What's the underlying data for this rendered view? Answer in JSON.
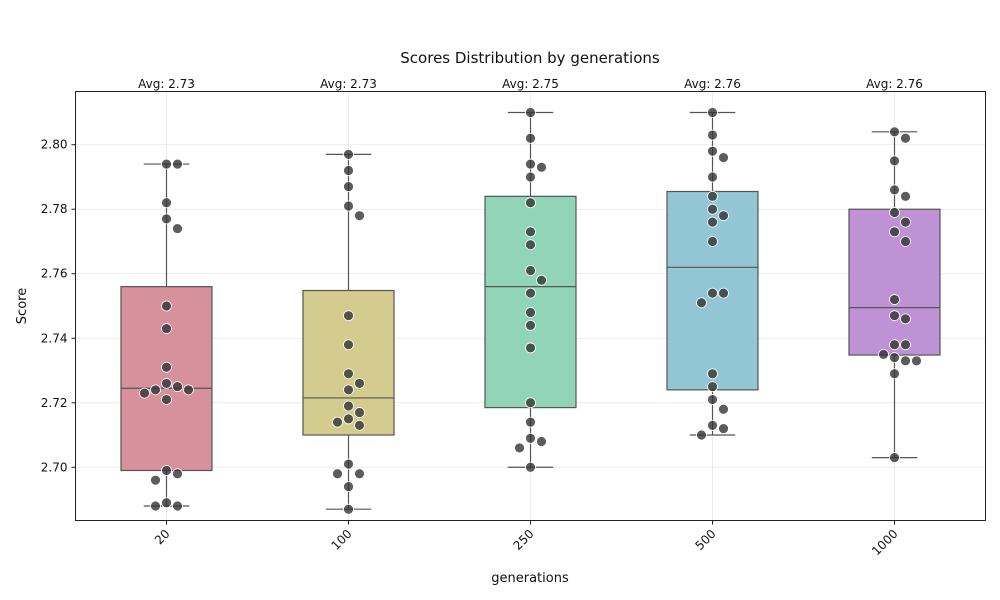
{
  "chart_data": {
    "type": "box",
    "title": "Scores Distribution by generations",
    "xlabel": "generations",
    "ylabel": "Score",
    "ylim": [
      2.6835,
      2.8165
    ],
    "yticks": [
      "2.70",
      "2.72",
      "2.74",
      "2.76",
      "2.78",
      "2.80"
    ],
    "grid": true,
    "categories": [
      {
        "label": "20",
        "avg_label": "Avg: 2.73",
        "color": "#d7919c",
        "box": {
          "whislo": 2.688,
          "q1": 2.699,
          "med": 2.7245,
          "q3": 2.756,
          "whishi": 2.794
        },
        "points": [
          2.794,
          2.794,
          2.782,
          2.777,
          2.774,
          2.75,
          2.743,
          2.731,
          2.726,
          2.725,
          2.724,
          2.724,
          2.723,
          2.721,
          2.699,
          2.698,
          2.696,
          2.689,
          2.688,
          2.688
        ]
      },
      {
        "label": "100",
        "avg_label": "Avg: 2.73",
        "color": "#d4cb8e",
        "box": {
          "whislo": 2.687,
          "q1": 2.71,
          "med": 2.7215,
          "q3": 2.7548,
          "whishi": 2.797
        },
        "points": [
          2.797,
          2.792,
          2.787,
          2.781,
          2.778,
          2.747,
          2.738,
          2.729,
          2.726,
          2.724,
          2.719,
          2.717,
          2.715,
          2.714,
          2.713,
          2.701,
          2.698,
          2.698,
          2.694,
          2.687
        ]
      },
      {
        "label": "250",
        "avg_label": "Avg: 2.75",
        "color": "#92d4b8",
        "box": {
          "whislo": 2.7,
          "q1": 2.7185,
          "med": 2.756,
          "q3": 2.784,
          "whishi": 2.81
        },
        "points": [
          2.81,
          2.802,
          2.794,
          2.793,
          2.79,
          2.782,
          2.773,
          2.769,
          2.761,
          2.758,
          2.754,
          2.748,
          2.744,
          2.737,
          2.72,
          2.714,
          2.709,
          2.708,
          2.706,
          2.7
        ]
      },
      {
        "label": "500",
        "avg_label": "Avg: 2.76",
        "color": "#92c6d4",
        "box": {
          "whislo": 2.71,
          "q1": 2.724,
          "med": 2.762,
          "q3": 2.7855,
          "whishi": 2.81
        },
        "points": [
          2.81,
          2.803,
          2.798,
          2.796,
          2.79,
          2.784,
          2.78,
          2.778,
          2.776,
          2.77,
          2.754,
          2.754,
          2.751,
          2.729,
          2.725,
          2.721,
          2.718,
          2.713,
          2.712,
          2.71
        ]
      },
      {
        "label": "1000",
        "avg_label": "Avg: 2.76",
        "color": "#be92d4",
        "box": {
          "whislo": 2.703,
          "q1": 2.7348,
          "med": 2.7495,
          "q3": 2.78,
          "whishi": 2.804
        },
        "points": [
          2.804,
          2.802,
          2.795,
          2.786,
          2.784,
          2.779,
          2.776,
          2.773,
          2.77,
          2.752,
          2.747,
          2.746,
          2.738,
          2.738,
          2.735,
          2.734,
          2.733,
          2.733,
          2.729,
          2.703
        ]
      }
    ]
  }
}
